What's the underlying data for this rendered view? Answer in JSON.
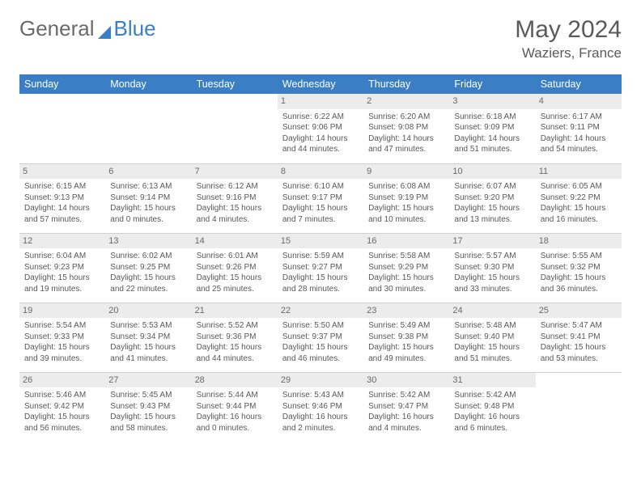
{
  "brand": {
    "name1": "General",
    "name2": "Blue"
  },
  "title": {
    "month_year": "May 2024",
    "location": "Waziers, France"
  },
  "colors": {
    "header_bg": "#3a7fc4",
    "header_text": "#ffffff",
    "daynum_bg": "#ececec",
    "text": "#585858",
    "border": "#cfcfcf",
    "bg": "#ffffff"
  },
  "day_headers": [
    "Sunday",
    "Monday",
    "Tuesday",
    "Wednesday",
    "Thursday",
    "Friday",
    "Saturday"
  ],
  "weeks": [
    [
      {
        "n": "",
        "sr": "",
        "ss": "",
        "dh": "",
        "dm": ""
      },
      {
        "n": "",
        "sr": "",
        "ss": "",
        "dh": "",
        "dm": ""
      },
      {
        "n": "",
        "sr": "",
        "ss": "",
        "dh": "",
        "dm": ""
      },
      {
        "n": "1",
        "sr": "6:22 AM",
        "ss": "9:06 PM",
        "dh": "14",
        "dm": "44"
      },
      {
        "n": "2",
        "sr": "6:20 AM",
        "ss": "9:08 PM",
        "dh": "14",
        "dm": "47"
      },
      {
        "n": "3",
        "sr": "6:18 AM",
        "ss": "9:09 PM",
        "dh": "14",
        "dm": "51"
      },
      {
        "n": "4",
        "sr": "6:17 AM",
        "ss": "9:11 PM",
        "dh": "14",
        "dm": "54"
      }
    ],
    [
      {
        "n": "5",
        "sr": "6:15 AM",
        "ss": "9:13 PM",
        "dh": "14",
        "dm": "57"
      },
      {
        "n": "6",
        "sr": "6:13 AM",
        "ss": "9:14 PM",
        "dh": "15",
        "dm": "0"
      },
      {
        "n": "7",
        "sr": "6:12 AM",
        "ss": "9:16 PM",
        "dh": "15",
        "dm": "4"
      },
      {
        "n": "8",
        "sr": "6:10 AM",
        "ss": "9:17 PM",
        "dh": "15",
        "dm": "7"
      },
      {
        "n": "9",
        "sr": "6:08 AM",
        "ss": "9:19 PM",
        "dh": "15",
        "dm": "10"
      },
      {
        "n": "10",
        "sr": "6:07 AM",
        "ss": "9:20 PM",
        "dh": "15",
        "dm": "13"
      },
      {
        "n": "11",
        "sr": "6:05 AM",
        "ss": "9:22 PM",
        "dh": "15",
        "dm": "16"
      }
    ],
    [
      {
        "n": "12",
        "sr": "6:04 AM",
        "ss": "9:23 PM",
        "dh": "15",
        "dm": "19"
      },
      {
        "n": "13",
        "sr": "6:02 AM",
        "ss": "9:25 PM",
        "dh": "15",
        "dm": "22"
      },
      {
        "n": "14",
        "sr": "6:01 AM",
        "ss": "9:26 PM",
        "dh": "15",
        "dm": "25"
      },
      {
        "n": "15",
        "sr": "5:59 AM",
        "ss": "9:27 PM",
        "dh": "15",
        "dm": "28"
      },
      {
        "n": "16",
        "sr": "5:58 AM",
        "ss": "9:29 PM",
        "dh": "15",
        "dm": "30"
      },
      {
        "n": "17",
        "sr": "5:57 AM",
        "ss": "9:30 PM",
        "dh": "15",
        "dm": "33"
      },
      {
        "n": "18",
        "sr": "5:55 AM",
        "ss": "9:32 PM",
        "dh": "15",
        "dm": "36"
      }
    ],
    [
      {
        "n": "19",
        "sr": "5:54 AM",
        "ss": "9:33 PM",
        "dh": "15",
        "dm": "39"
      },
      {
        "n": "20",
        "sr": "5:53 AM",
        "ss": "9:34 PM",
        "dh": "15",
        "dm": "41"
      },
      {
        "n": "21",
        "sr": "5:52 AM",
        "ss": "9:36 PM",
        "dh": "15",
        "dm": "44"
      },
      {
        "n": "22",
        "sr": "5:50 AM",
        "ss": "9:37 PM",
        "dh": "15",
        "dm": "46"
      },
      {
        "n": "23",
        "sr": "5:49 AM",
        "ss": "9:38 PM",
        "dh": "15",
        "dm": "49"
      },
      {
        "n": "24",
        "sr": "5:48 AM",
        "ss": "9:40 PM",
        "dh": "15",
        "dm": "51"
      },
      {
        "n": "25",
        "sr": "5:47 AM",
        "ss": "9:41 PM",
        "dh": "15",
        "dm": "53"
      }
    ],
    [
      {
        "n": "26",
        "sr": "5:46 AM",
        "ss": "9:42 PM",
        "dh": "15",
        "dm": "56"
      },
      {
        "n": "27",
        "sr": "5:45 AM",
        "ss": "9:43 PM",
        "dh": "15",
        "dm": "58"
      },
      {
        "n": "28",
        "sr": "5:44 AM",
        "ss": "9:44 PM",
        "dh": "16",
        "dm": "0"
      },
      {
        "n": "29",
        "sr": "5:43 AM",
        "ss": "9:46 PM",
        "dh": "16",
        "dm": "2"
      },
      {
        "n": "30",
        "sr": "5:42 AM",
        "ss": "9:47 PM",
        "dh": "16",
        "dm": "4"
      },
      {
        "n": "31",
        "sr": "5:42 AM",
        "ss": "9:48 PM",
        "dh": "16",
        "dm": "6"
      },
      {
        "n": "",
        "sr": "",
        "ss": "",
        "dh": "",
        "dm": ""
      }
    ]
  ],
  "labels": {
    "sunrise": "Sunrise:",
    "sunset": "Sunset:",
    "daylight": "Daylight:",
    "hours": "hours",
    "and": "and",
    "minutes": "minutes."
  }
}
